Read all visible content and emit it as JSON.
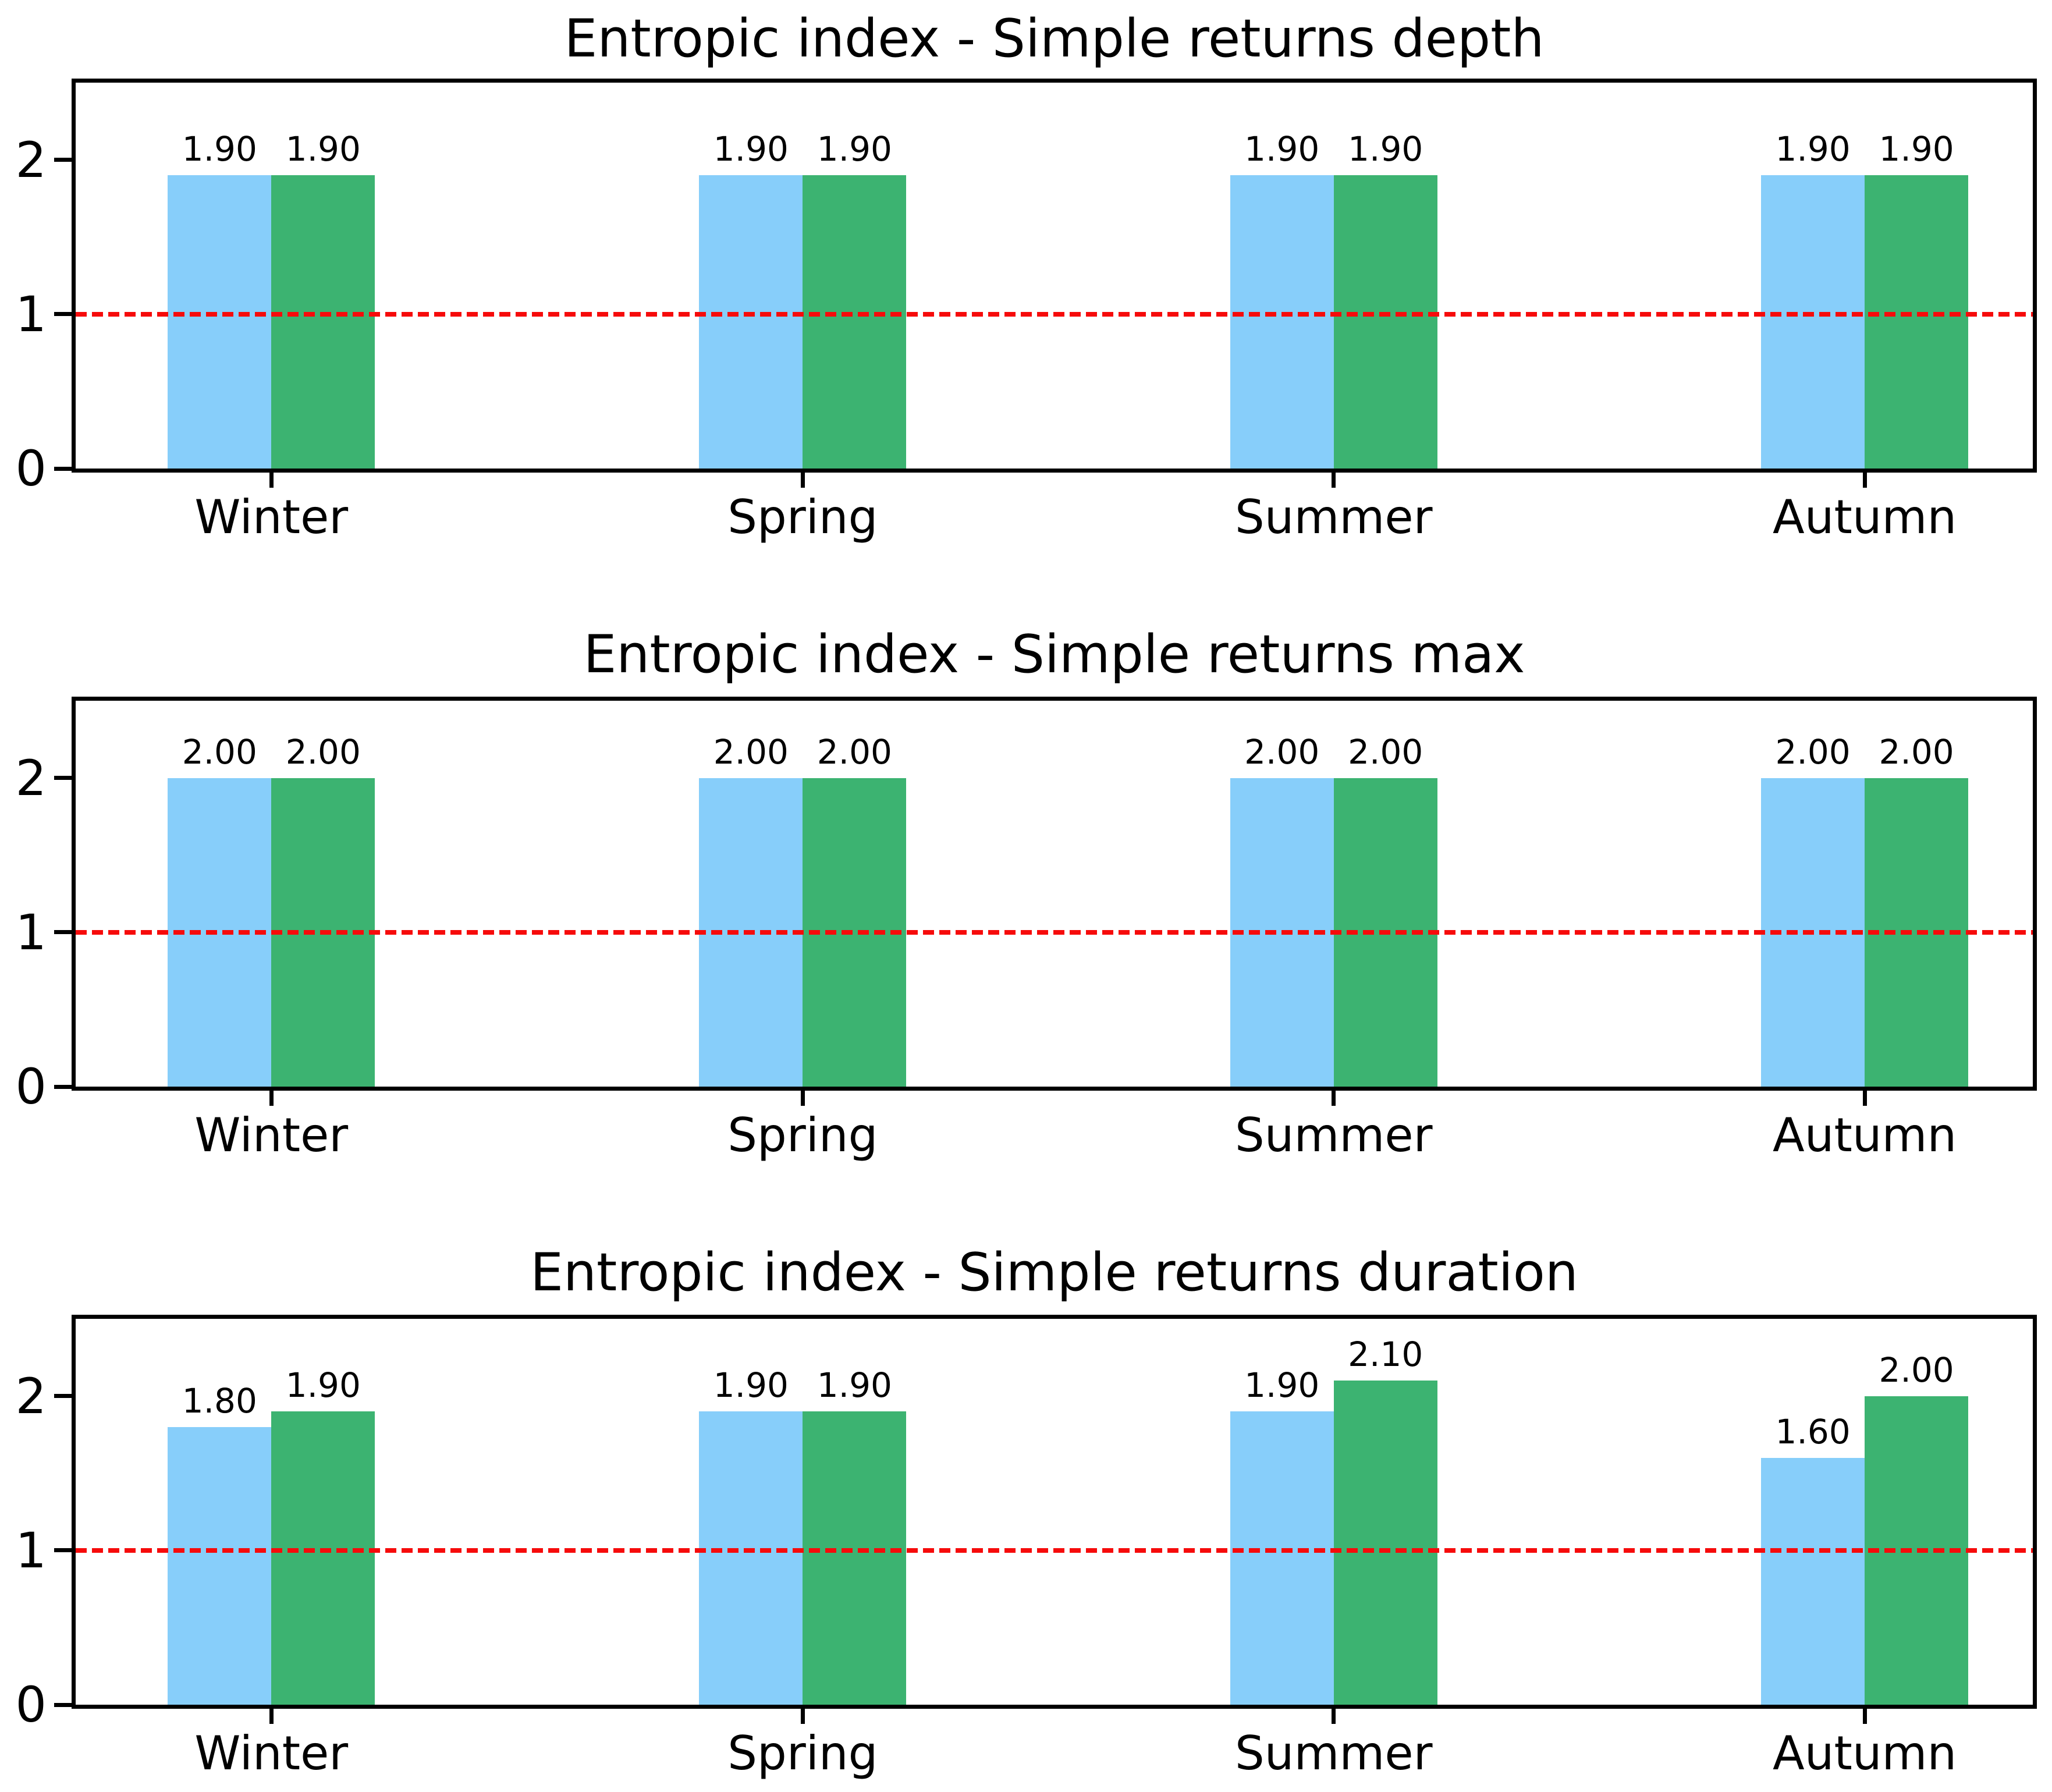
{
  "figure": {
    "background": "#FFFFFF",
    "text_color": "#000000",
    "axis_color": "#000000"
  },
  "chart_data": [
    {
      "type": "bar",
      "title": "Entropic index - Simple returns depth",
      "categories": [
        "Winter",
        "Spring",
        "Summer",
        "Autumn"
      ],
      "series": [
        {
          "name": "blue",
          "color": "#87CEFA",
          "values": [
            1.9,
            1.9,
            1.9,
            1.9
          ],
          "labels": [
            "1.90",
            "1.90",
            "1.90",
            "1.90"
          ]
        },
        {
          "name": "green",
          "color": "#3CB371",
          "values": [
            1.9,
            1.9,
            1.9,
            1.9
          ],
          "labels": [
            "1.90",
            "1.90",
            "1.90",
            "1.90"
          ]
        }
      ],
      "xlabel": "",
      "ylabel": "",
      "ylim": [
        0,
        2.5
      ],
      "yticks": [
        0,
        1,
        2
      ],
      "reference_line": {
        "y": 1,
        "color": "#F60B0B",
        "style": "dashed"
      },
      "grid": false,
      "legend": false
    },
    {
      "type": "bar",
      "title": "Entropic index - Simple returns max",
      "categories": [
        "Winter",
        "Spring",
        "Summer",
        "Autumn"
      ],
      "series": [
        {
          "name": "blue",
          "color": "#87CEFA",
          "values": [
            2.0,
            2.0,
            2.0,
            2.0
          ],
          "labels": [
            "2.00",
            "2.00",
            "2.00",
            "2.00"
          ]
        },
        {
          "name": "green",
          "color": "#3CB371",
          "values": [
            2.0,
            2.0,
            2.0,
            2.0
          ],
          "labels": [
            "2.00",
            "2.00",
            "2.00",
            "2.00"
          ]
        }
      ],
      "xlabel": "",
      "ylabel": "",
      "ylim": [
        0,
        2.5
      ],
      "yticks": [
        0,
        1,
        2
      ],
      "reference_line": {
        "y": 1,
        "color": "#F60B0B",
        "style": "dashed"
      },
      "grid": false,
      "legend": false
    },
    {
      "type": "bar",
      "title": "Entropic index - Simple returns duration",
      "categories": [
        "Winter",
        "Spring",
        "Summer",
        "Autumn"
      ],
      "series": [
        {
          "name": "blue",
          "color": "#87CEFA",
          "values": [
            1.8,
            1.9,
            1.9,
            1.6
          ],
          "labels": [
            "1.80",
            "1.90",
            "1.90",
            "1.60"
          ]
        },
        {
          "name": "green",
          "color": "#3CB371",
          "values": [
            1.9,
            1.9,
            2.1,
            2.0
          ],
          "labels": [
            "1.90",
            "1.90",
            "2.10",
            "2.00"
          ]
        }
      ],
      "xlabel": "",
      "ylabel": "",
      "ylim": [
        0,
        2.5
      ],
      "yticks": [
        0,
        1,
        2
      ],
      "reference_line": {
        "y": 1,
        "color": "#F60B0B",
        "style": "dashed"
      },
      "grid": false,
      "legend": false
    }
  ]
}
